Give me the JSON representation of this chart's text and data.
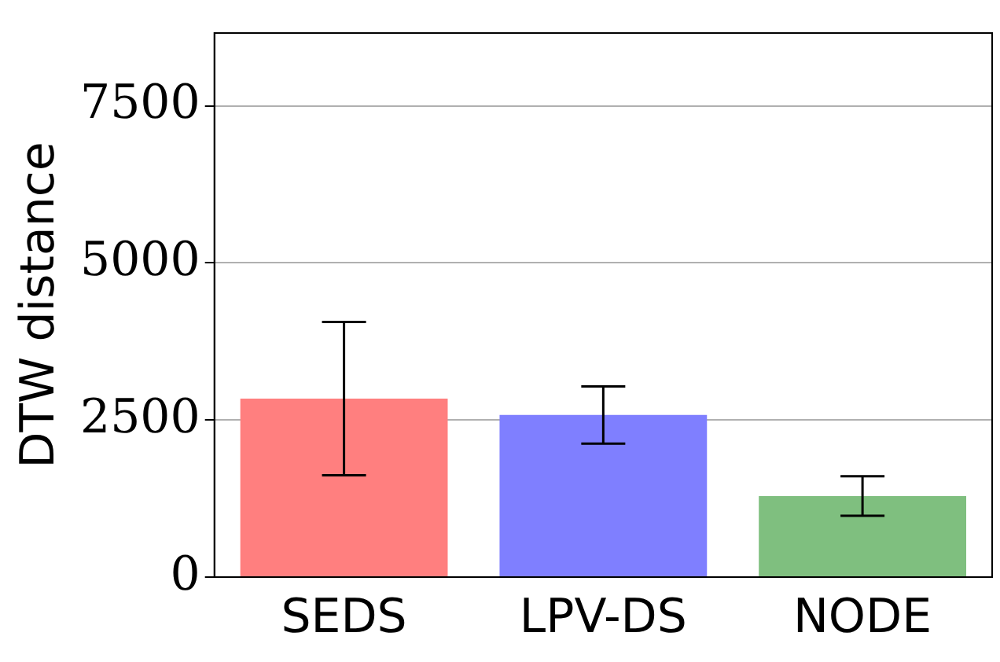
{
  "chart_data": {
    "type": "bar",
    "ylabel": "DTW distance",
    "categories": [
      "SEDS",
      "LPV-DS",
      "NODE"
    ],
    "values": [
      2840,
      2580,
      1290
    ],
    "errors": [
      1220,
      455,
      315
    ],
    "colors": [
      "#ff7f7f",
      "#7f7fff",
      "#7fbf7f"
    ],
    "ylim": [
      0,
      8660
    ],
    "yticks": [
      0,
      2500,
      5000,
      7500
    ],
    "grid": "y",
    "legend": false
  }
}
